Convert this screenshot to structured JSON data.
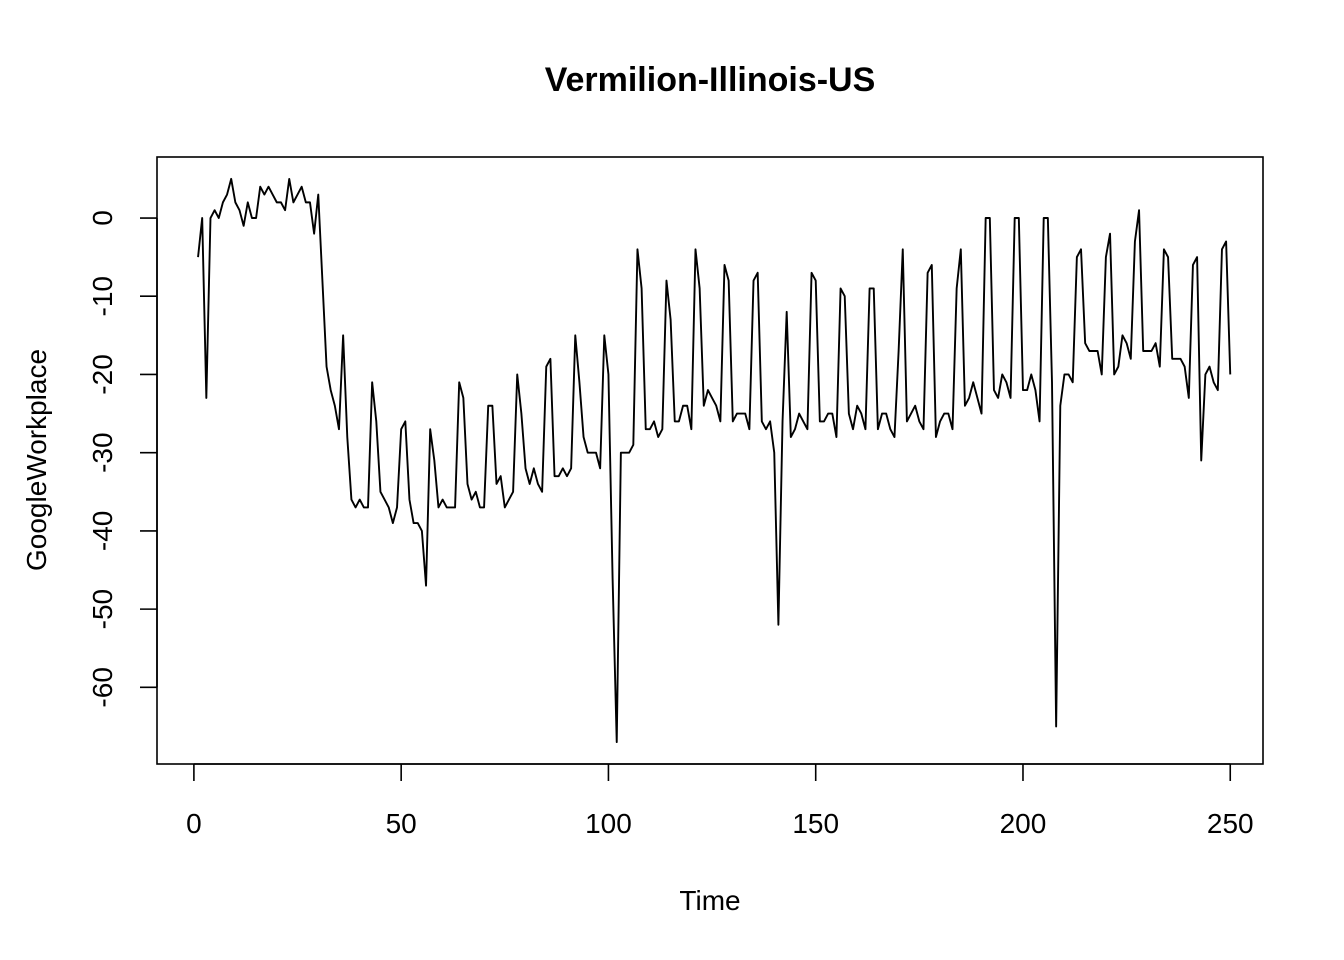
{
  "chart_data": {
    "type": "line",
    "title": "Vermilion-Illinois-US",
    "xlabel": "Time",
    "ylabel": "GoogleWorkplace",
    "xlim": [
      -8.9,
      257.9
    ],
    "ylim": [
      -69.8,
      7.8
    ],
    "grid": false,
    "x_ticks": [
      0,
      50,
      100,
      150,
      200,
      250
    ],
    "y_ticks": [
      0,
      -10,
      -20,
      -30,
      -40,
      -50,
      -60
    ],
    "series": [
      {
        "color": "#000000",
        "x_start": 1,
        "values": [
          -5,
          0,
          -23,
          0,
          1,
          0,
          2,
          3,
          5,
          2,
          1,
          -1,
          2,
          0,
          0,
          4,
          3,
          4,
          3,
          2,
          2,
          1,
          5,
          2,
          3,
          4,
          2,
          2,
          -2,
          3,
          -8,
          -19,
          -22,
          -24,
          -27,
          -15,
          -28,
          -36,
          -37,
          -36,
          -37,
          -37,
          -21,
          -26,
          -35,
          -36,
          -37,
          -39,
          -37,
          -27,
          -26,
          -36,
          -39,
          -39,
          -40,
          -47,
          -27,
          -31,
          -37,
          -36,
          -37,
          -37,
          -37,
          -21,
          -23,
          -34,
          -36,
          -35,
          -37,
          -37,
          -24,
          -24,
          -34,
          -33,
          -37,
          -36,
          -35,
          -20,
          -25,
          -32,
          -34,
          -32,
          -34,
          -35,
          -19,
          -18,
          -33,
          -33,
          -32,
          -33,
          -32,
          -15,
          -21,
          -28,
          -30,
          -30,
          -30,
          -32,
          -15,
          -20,
          -46,
          -67,
          -30,
          -30,
          -30,
          -29,
          -4,
          -9,
          -27,
          -27,
          -26,
          -28,
          -27,
          -8,
          -13,
          -26,
          -26,
          -24,
          -24,
          -27,
          -4,
          -9,
          -24,
          -22,
          -23,
          -24,
          -26,
          -6,
          -8,
          -26,
          -25,
          -25,
          -25,
          -27,
          -8,
          -7,
          -26,
          -27,
          -26,
          -30,
          -52,
          -26,
          -12,
          -28,
          -27,
          -25,
          -26,
          -27,
          -7,
          -8,
          -26,
          -26,
          -25,
          -25,
          -28,
          -9,
          -10,
          -25,
          -27,
          -24,
          -25,
          -27,
          -9,
          -9,
          -27,
          -25,
          -25,
          -27,
          -28,
          -17,
          -4,
          -26,
          -25,
          -24,
          -26,
          -27,
          -7,
          -6,
          -28,
          -26,
          -25,
          -25,
          -27,
          -9,
          -4,
          -24,
          -23,
          -21,
          -23,
          -25,
          0,
          0,
          -22,
          -23,
          -20,
          -21,
          -23,
          0,
          0,
          -22,
          -22,
          -20,
          -22,
          -26,
          0,
          0,
          -21,
          -65,
          -24,
          -20,
          -20,
          -21,
          -5,
          -4,
          -16,
          -17,
          -17,
          -17,
          -20,
          -5,
          -2,
          -20,
          -19,
          -15,
          -16,
          -18,
          -3,
          1,
          -17,
          -17,
          -17,
          -16,
          -19,
          -4,
          -5,
          -18,
          -18,
          -18,
          -19,
          -23,
          -6,
          -5,
          -31,
          -20,
          -19,
          -21,
          -22,
          -4,
          -3,
          -20
        ]
      }
    ]
  }
}
